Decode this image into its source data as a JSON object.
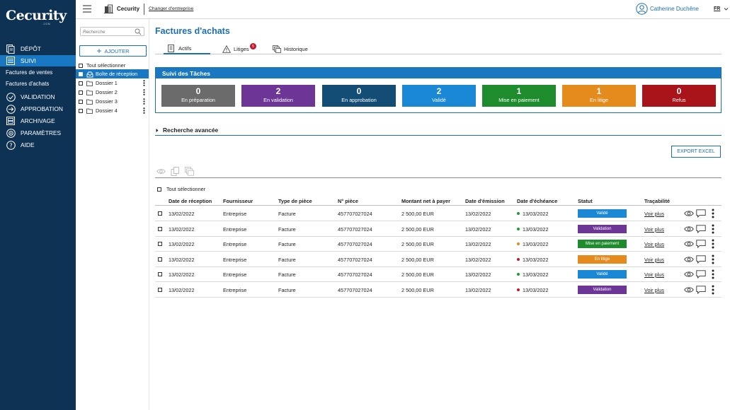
{
  "brand": {
    "logo": "Cecurity",
    "logo_sub": ".COM"
  },
  "nav": {
    "depot": "DÉPÔT",
    "suivi": "SUIVI",
    "factures_ventes": "Factures de ventes",
    "factures_achats": "Factures d'achats",
    "validation": "VALIDATION",
    "approbation": "APPROBATION",
    "archivage": "ARCHIVAGE",
    "parametres": "PARAMÈTRES",
    "aide": "AIDE"
  },
  "topbar": {
    "company": "Cecurity",
    "change_company": "Changer d'entreprise",
    "user": "Catherine Duchêne",
    "lang": "FR"
  },
  "tree": {
    "search_placeholder": "Recherche",
    "add_label": "AJOUTER",
    "select_all": "Tout sélectionner",
    "inbox": "Boîte de réception",
    "folders": [
      "Dossier 1",
      "Dossier 2",
      "Dossier 3",
      "Dossier 4"
    ]
  },
  "main": {
    "title": "Factures d'achats",
    "tabs": {
      "actifs": "Actifs",
      "litiges": "Litiges",
      "litiges_count": "5",
      "historique": "Historique"
    },
    "tasks": {
      "title": "Suivi des Tâches",
      "cards": [
        {
          "count": "0",
          "label": "En préparation",
          "color": "#6b6b6b"
        },
        {
          "count": "2",
          "label": "En validation",
          "color": "#6d3596"
        },
        {
          "count": "0",
          "label": "En approbation",
          "color": "#134c74"
        },
        {
          "count": "2",
          "label": "Validé",
          "color": "#1a88d4"
        },
        {
          "count": "1",
          "label": "Mise en paiement",
          "color": "#1e8b2c"
        },
        {
          "count": "1",
          "label": "En litige",
          "color": "#e58a1d"
        },
        {
          "count": "0",
          "label": "Refus",
          "color": "#a81419"
        }
      ]
    },
    "advanced_search": "Recherche avancée",
    "export": "EXPORT EXCEL",
    "select_all": "Tout sélectionner",
    "columns": {
      "date_reception": "Date de réception",
      "fournisseur": "Fournisseur",
      "type": "Type de pièce",
      "num": "N° pièce",
      "montant": "Montant net à payer",
      "emission": "Date d'émission",
      "echeance": "Date d'échéance",
      "statut": "Statut",
      "tracabilite": "Traçabilité"
    },
    "rows": [
      {
        "date": "13/02/2022",
        "fournisseur": "Entreprise",
        "type": "Facture",
        "num": "457707027024",
        "montant": "2 500,00 EUR",
        "emission": "13/02/2022",
        "echeance": "13/03/2022",
        "dot": "#1e9a3a",
        "statut": "Validé",
        "statut_color": "#1a88d4",
        "voir": "Voir plus"
      },
      {
        "date": "13/02/2022",
        "fournisseur": "Entreprise",
        "type": "Facture",
        "num": "457707027024",
        "montant": "2 500,00 EUR",
        "emission": "13/02/2022",
        "echeance": "13/03/2022",
        "dot": "#1e9a3a",
        "statut": "Validation",
        "statut_color": "#6d3596",
        "voir": "Voir plus"
      },
      {
        "date": "13/02/2022",
        "fournisseur": "Entreprise",
        "type": "Facture",
        "num": "457707027024",
        "montant": "2 500,00 EUR",
        "emission": "13/02/2022",
        "echeance": "13/03/2022",
        "dot": "#e58a1d",
        "statut": "Mise en paiement",
        "statut_color": "#1e8b2c",
        "voir": "Voir plus"
      },
      {
        "date": "13/02/2022",
        "fournisseur": "Entreprise",
        "type": "Facture",
        "num": "457707027024",
        "montant": "2 500,00 EUR",
        "emission": "13/02/2022",
        "echeance": "13/03/2022",
        "dot": "#c0182a",
        "statut": "En litige",
        "statut_color": "#e58a1d",
        "voir": "Voir plus"
      },
      {
        "date": "13/02/2022",
        "fournisseur": "Entreprise",
        "type": "Facture",
        "num": "457707027024",
        "montant": "2 500,00 EUR",
        "emission": "13/02/2022",
        "echeance": "13/03/2022",
        "dot": "#1e9a3a",
        "statut": "Validé",
        "statut_color": "#1a88d4",
        "voir": "Voir plus"
      },
      {
        "date": "13/02/2022",
        "fournisseur": "Entreprise",
        "type": "Facture",
        "num": "457707027024",
        "montant": "2 500,00 EUR",
        "emission": "13/02/2022",
        "echeance": "13/03/2022",
        "dot": "#c0182a",
        "statut": "Validation",
        "statut_color": "#6d3596",
        "voir": "Voir plus"
      }
    ]
  }
}
